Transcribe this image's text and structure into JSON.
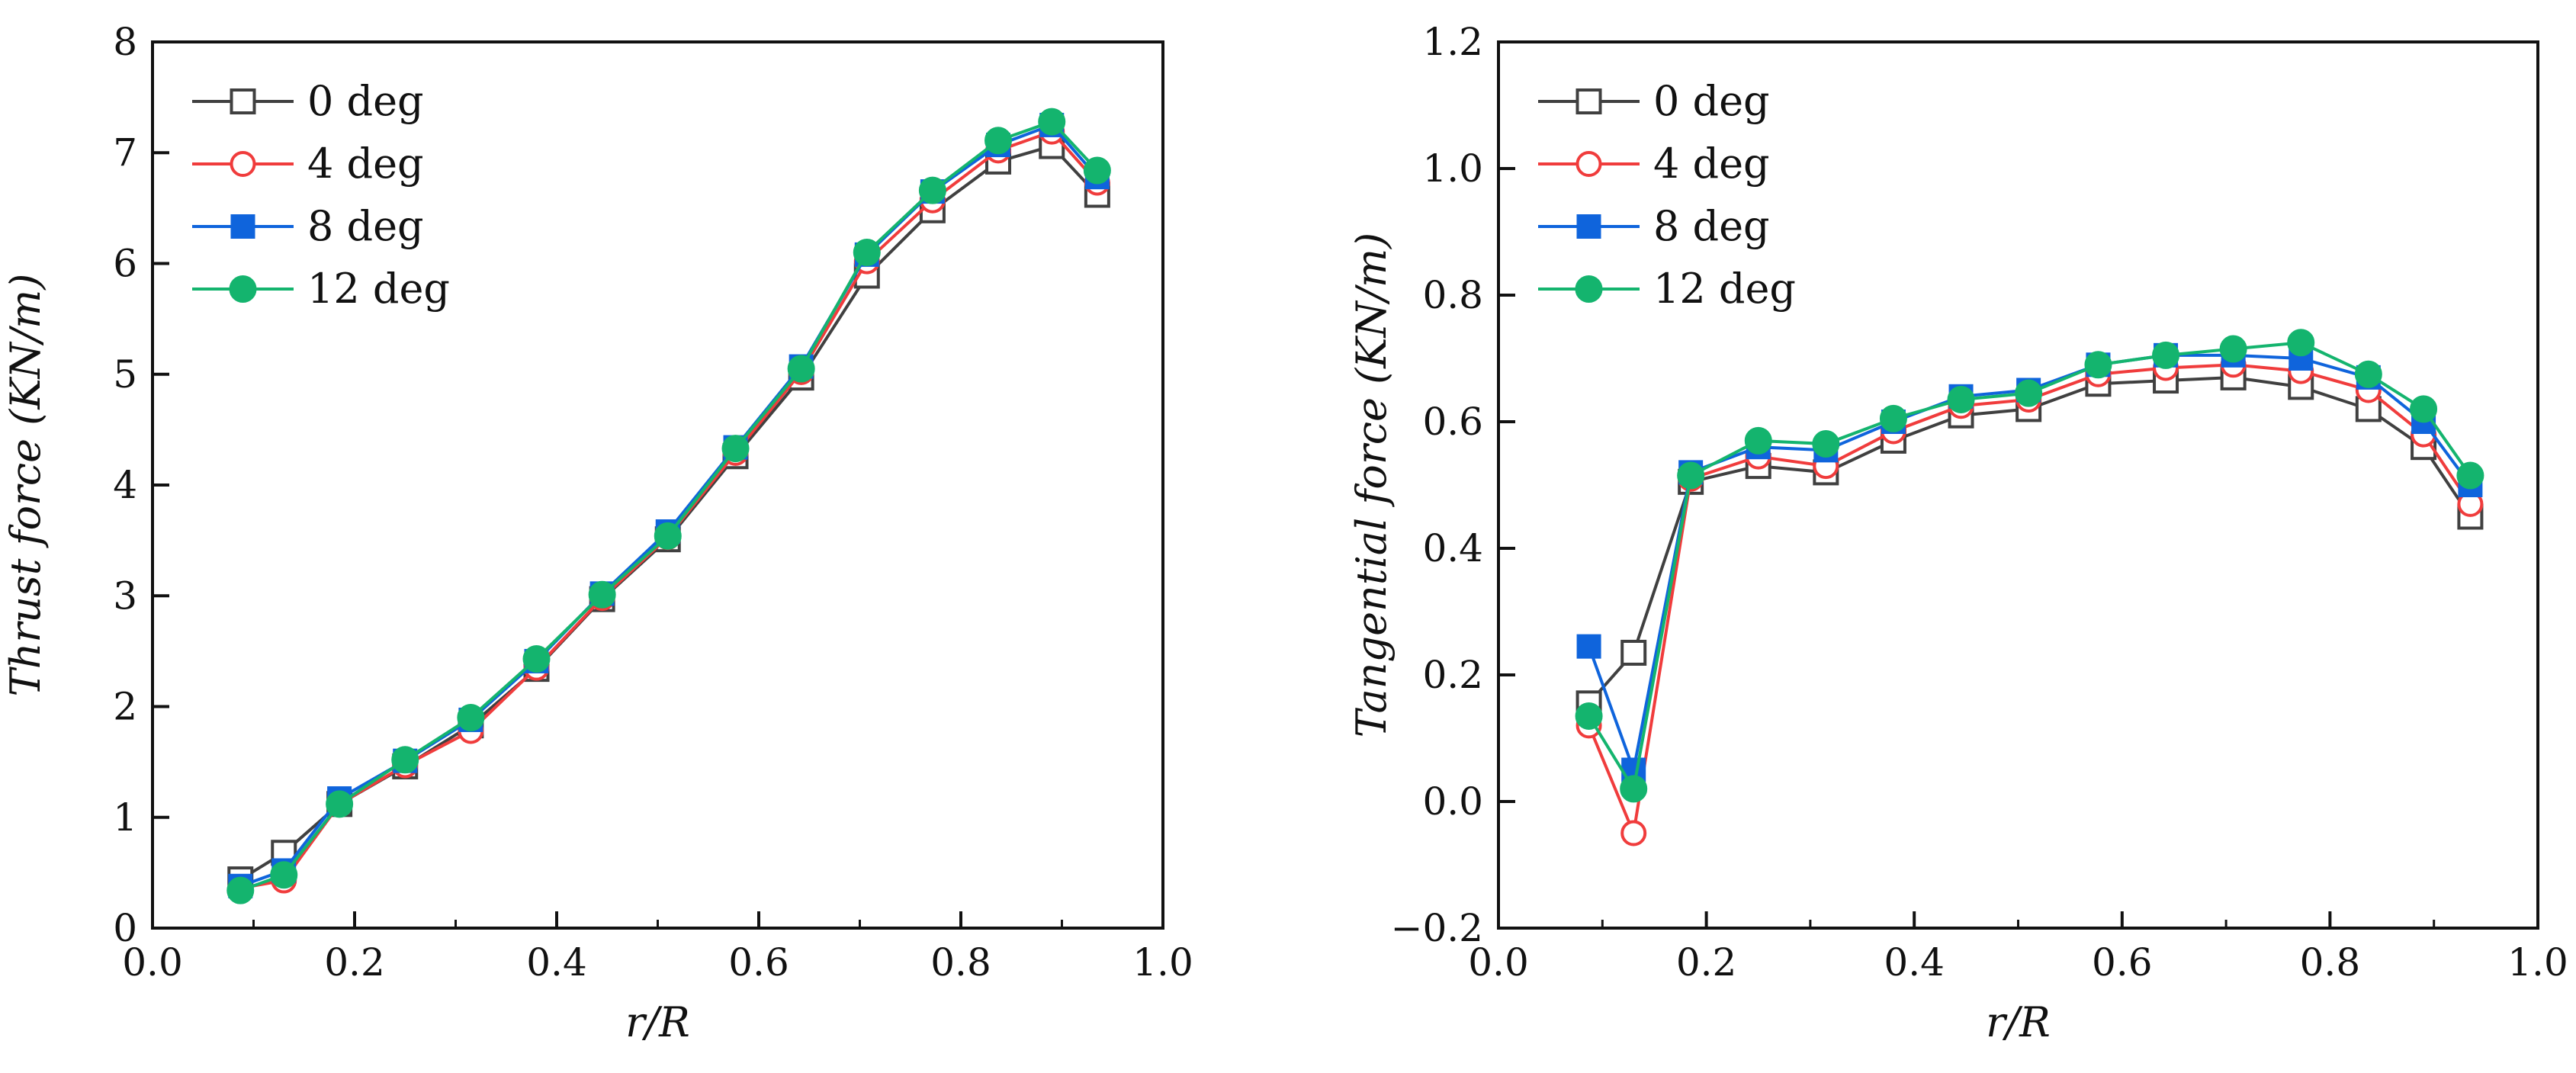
{
  "chart_data": [
    {
      "type": "line",
      "xlabel": "r/R",
      "ylabel": "Thrust force (KN/m)",
      "xlim": [
        0.0,
        1.0
      ],
      "ylim": [
        0,
        8
      ],
      "xticks": [
        0.0,
        0.2,
        0.4,
        0.6,
        0.8,
        1.0
      ],
      "xtick_labels": [
        "0.0",
        "0.2",
        "0.4",
        "0.6",
        "0.8",
        "1.0"
      ],
      "yticks": [
        0,
        1,
        2,
        3,
        4,
        5,
        6,
        7,
        8
      ],
      "ytick_labels": [
        "0",
        "1",
        "2",
        "3",
        "4",
        "5",
        "6",
        "7",
        "8"
      ],
      "grid": false,
      "legend_position": "top-left",
      "x": [
        0.087,
        0.13,
        0.185,
        0.25,
        0.315,
        0.38,
        0.445,
        0.51,
        0.577,
        0.642,
        0.707,
        0.772,
        0.837,
        0.89,
        0.935
      ],
      "series": [
        {
          "name": "0 deg",
          "color": "#404040",
          "marker": "square-open",
          "values": [
            0.44,
            0.68,
            1.12,
            1.46,
            1.83,
            2.34,
            2.97,
            3.51,
            4.26,
            4.97,
            5.89,
            6.48,
            6.92,
            7.06,
            6.62
          ]
        },
        {
          "name": "4 deg",
          "color": "#f03c3c",
          "marker": "circle-open",
          "values": [
            0.36,
            0.43,
            1.12,
            1.47,
            1.78,
            2.35,
            2.98,
            3.53,
            4.29,
            5.02,
            6.02,
            6.57,
            7.02,
            7.19,
            6.73
          ]
        },
        {
          "name": "8 deg",
          "color": "#0f64dc",
          "marker": "square-filled",
          "values": [
            0.38,
            0.52,
            1.17,
            1.51,
            1.88,
            2.41,
            3.02,
            3.58,
            4.34,
            5.07,
            6.08,
            6.65,
            7.07,
            7.25,
            6.78
          ]
        },
        {
          "name": "12 deg",
          "color": "#14b46e",
          "marker": "circle-filled",
          "values": [
            0.34,
            0.48,
            1.12,
            1.52,
            1.9,
            2.43,
            3.01,
            3.54,
            4.33,
            5.05,
            6.1,
            6.66,
            7.11,
            7.28,
            6.84
          ]
        }
      ]
    },
    {
      "type": "line",
      "xlabel": "r/R",
      "ylabel": "Tangential force (KN/m)",
      "xlim": [
        0.0,
        1.0
      ],
      "ylim": [
        -0.2,
        1.2
      ],
      "xticks": [
        0.0,
        0.2,
        0.4,
        0.6,
        0.8,
        1.0
      ],
      "xtick_labels": [
        "0.0",
        "0.2",
        "0.4",
        "0.6",
        "0.8",
        "1.0"
      ],
      "yticks": [
        -0.2,
        0.0,
        0.2,
        0.4,
        0.6,
        0.8,
        1.0,
        1.2
      ],
      "ytick_labels": [
        "−0.2",
        "0.0",
        "0.2",
        "0.4",
        "0.6",
        "0.8",
        "1.0",
        "1.2"
      ],
      "grid": false,
      "legend_position": "top-left",
      "x": [
        0.087,
        0.13,
        0.185,
        0.25,
        0.315,
        0.38,
        0.445,
        0.51,
        0.577,
        0.642,
        0.707,
        0.772,
        0.837,
        0.89,
        0.935
      ],
      "series": [
        {
          "name": "0 deg",
          "color": "#404040",
          "marker": "square-open",
          "values": [
            0.155,
            0.235,
            0.505,
            0.53,
            0.52,
            0.57,
            0.61,
            0.62,
            0.66,
            0.665,
            0.67,
            0.655,
            0.62,
            0.56,
            0.45
          ]
        },
        {
          "name": "4 deg",
          "color": "#f03c3c",
          "marker": "circle-open",
          "values": [
            0.12,
            -0.05,
            0.51,
            0.545,
            0.53,
            0.585,
            0.625,
            0.635,
            0.675,
            0.685,
            0.69,
            0.68,
            0.65,
            0.58,
            0.47
          ]
        },
        {
          "name": "8 deg",
          "color": "#0f64dc",
          "marker": "square-filled",
          "values": [
            0.245,
            0.05,
            0.52,
            0.56,
            0.555,
            0.6,
            0.64,
            0.65,
            0.69,
            0.705,
            0.705,
            0.7,
            0.67,
            0.6,
            0.5
          ]
        },
        {
          "name": "12 deg",
          "color": "#14b46e",
          "marker": "circle-filled",
          "values": [
            0.135,
            0.02,
            0.515,
            0.57,
            0.565,
            0.605,
            0.635,
            0.645,
            0.69,
            0.705,
            0.715,
            0.725,
            0.675,
            0.62,
            0.515
          ]
        }
      ]
    }
  ]
}
